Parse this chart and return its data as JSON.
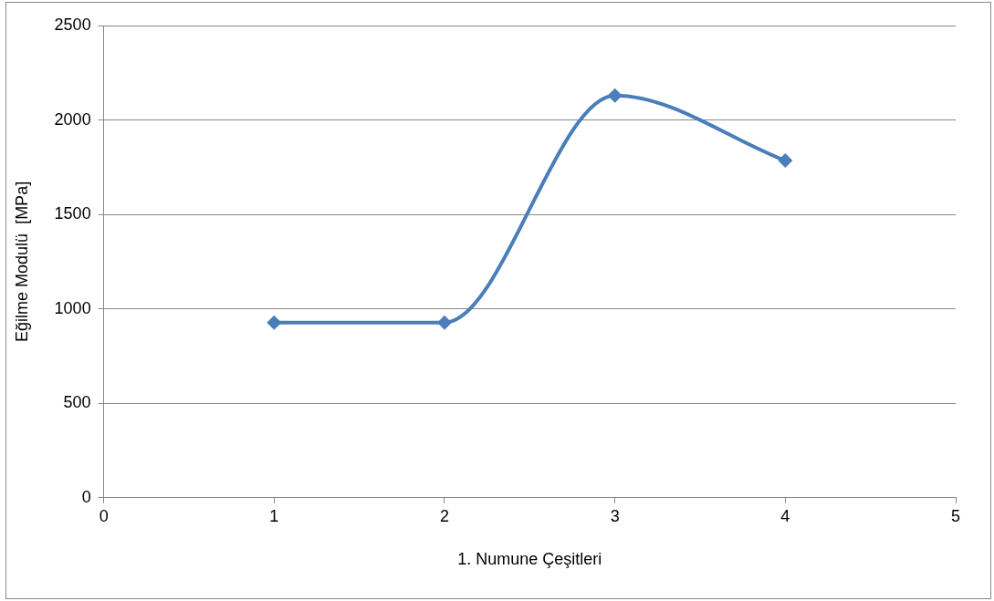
{
  "chart_data": {
    "type": "line",
    "xlabel": "1. Numune Çeşitleri",
    "ylabel": "Eğilme Modulü  [MPa]",
    "x": [
      1,
      2,
      3,
      4
    ],
    "series": [
      {
        "color": "#4a7ebb",
        "values": [
          927,
          927,
          2130,
          1785
        ]
      }
    ],
    "xlim": [
      0,
      5
    ],
    "xticks": [
      0,
      1,
      2,
      3,
      4,
      5
    ],
    "ylim": [
      0,
      2500
    ],
    "yticks": [
      0,
      500,
      1000,
      1500,
      2000,
      2500
    ],
    "grid": "y",
    "legend": false,
    "marker": "diamond",
    "line_style": "solid"
  }
}
